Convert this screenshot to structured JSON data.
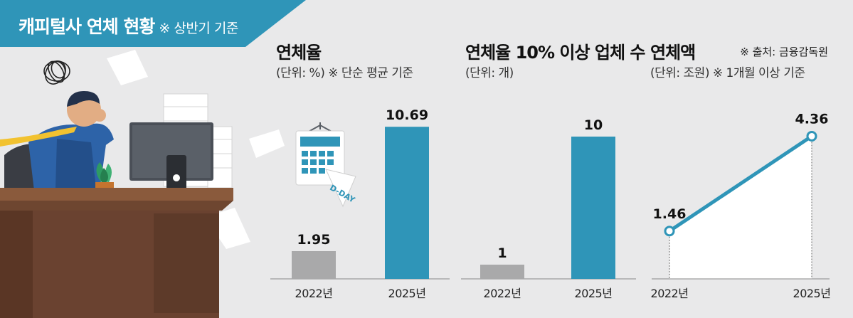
{
  "header": {
    "title": "캐피털사 연체 현황",
    "note": "※ 상반기 기준"
  },
  "source": "※ 출처: 금융감독원",
  "illustration": {
    "calendar_label": "D-DAY"
  },
  "colors": {
    "accent": "#2f95b8",
    "past_bar": "#a9a9aa",
    "line": "#2f95b8",
    "background": "#e9e9ea"
  },
  "chart_data": [
    {
      "type": "bar",
      "title": "연체율",
      "subtitle": "(단위: %) ※ 단순 평균 기준",
      "categories": [
        "2022년",
        "2025년"
      ],
      "values": [
        1.95,
        10.69
      ],
      "value_labels": [
        "1.95",
        "10.69"
      ],
      "ylim": [
        0,
        11.5
      ]
    },
    {
      "type": "bar",
      "title": "연체율 10% 이상 업체 수",
      "subtitle": "(단위: 개)",
      "categories": [
        "2022년",
        "2025년"
      ],
      "values": [
        1,
        10
      ],
      "value_labels": [
        "1",
        "10"
      ],
      "ylim": [
        0,
        11.5
      ]
    },
    {
      "type": "line",
      "title": "연체액",
      "subtitle": "(단위: 조원) ※ 1개월 이상 기준",
      "categories": [
        "2022년",
        "2025년"
      ],
      "values": [
        1.46,
        4.36
      ],
      "value_labels": [
        "1.46",
        "4.36"
      ],
      "ylim": [
        0,
        5
      ]
    }
  ]
}
